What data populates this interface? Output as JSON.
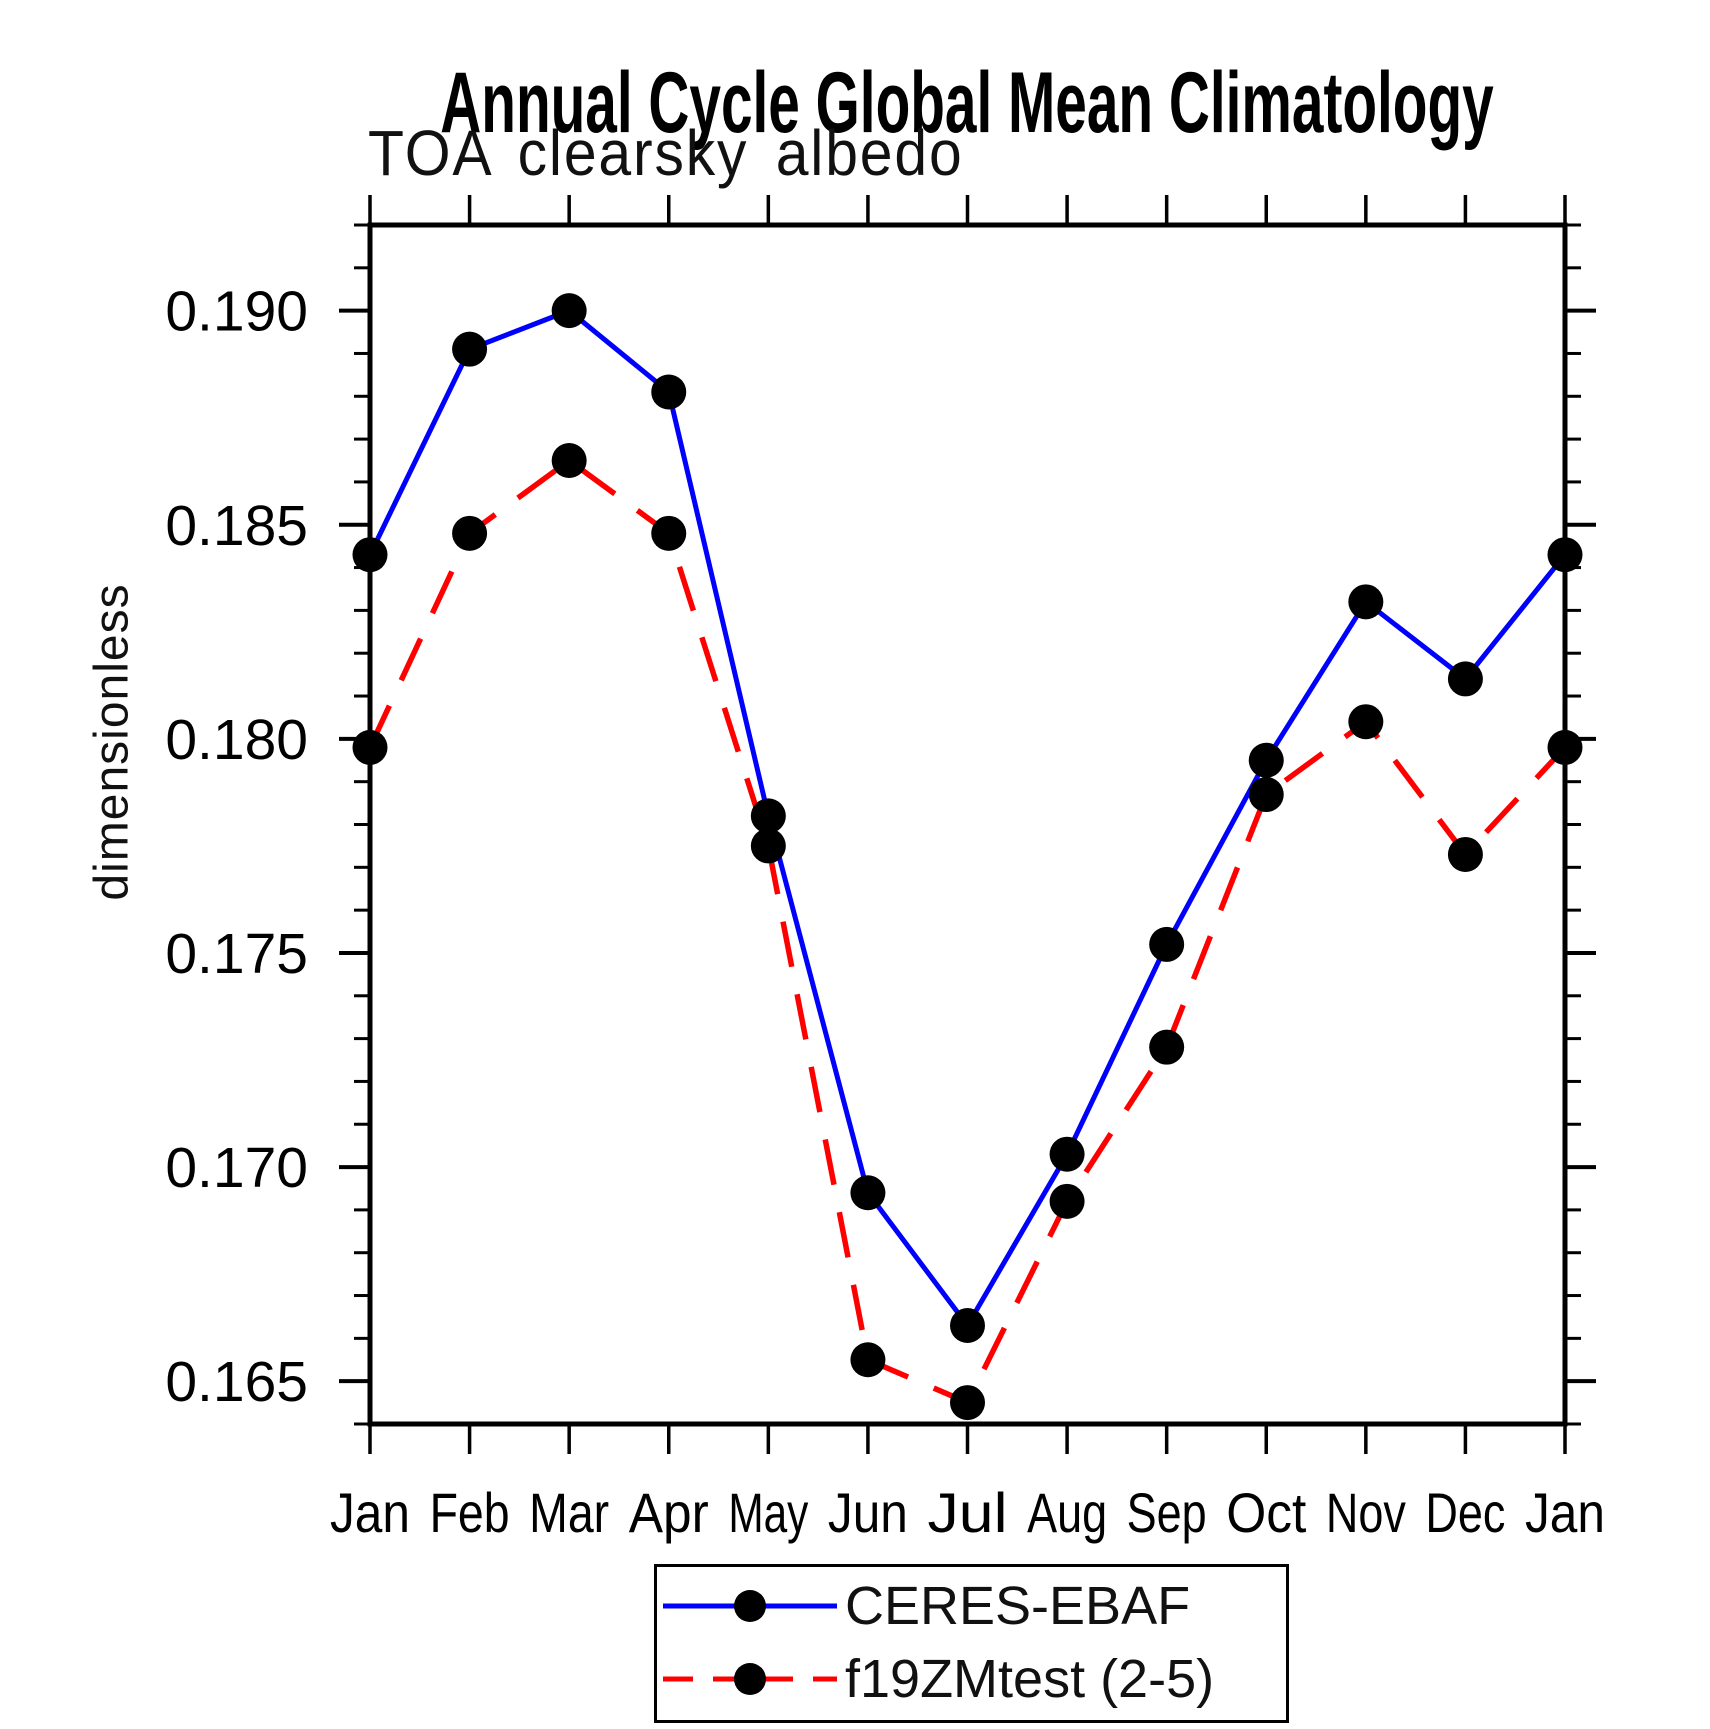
{
  "chart_data": {
    "type": "line",
    "title": "Annual Cycle Global Mean Climatology",
    "subtitle": "TOA clearsky albedo",
    "xlabel": "",
    "ylabel": "dimensionless",
    "categories": [
      "Jan",
      "Feb",
      "Mar",
      "Apr",
      "May",
      "Jun",
      "Jul",
      "Aug",
      "Sep",
      "Oct",
      "Nov",
      "Dec",
      "Jan"
    ],
    "y_axis_range": [
      0.164,
      0.192
    ],
    "y_major_tick_step": 0.005,
    "y_minor_tick_step": 0.001,
    "y_tick_labels": [
      "0.165",
      "0.170",
      "0.175",
      "0.180",
      "0.185",
      "0.190"
    ],
    "grid": false,
    "legend_position": "bottom-center",
    "series": [
      {
        "name": "CERES-EBAF",
        "color": "#0000ff",
        "style": "solid",
        "marker": "filled-circle",
        "marker_color": "#000000",
        "values": [
          0.1843,
          0.1891,
          0.19,
          0.1881,
          0.1782,
          0.1694,
          0.1663,
          0.1703,
          0.1752,
          0.1795,
          0.1832,
          0.1814,
          0.1843
        ]
      },
      {
        "name": "f19ZMtest (2-5)",
        "color": "#ff0000",
        "style": "dashed",
        "marker": "filled-circle",
        "marker_color": "#000000",
        "values": [
          0.1798,
          0.1848,
          0.1865,
          0.1848,
          0.1775,
          0.1655,
          0.1645,
          0.1692,
          0.1728,
          0.1787,
          0.1804,
          0.1773,
          0.1798
        ]
      }
    ]
  }
}
